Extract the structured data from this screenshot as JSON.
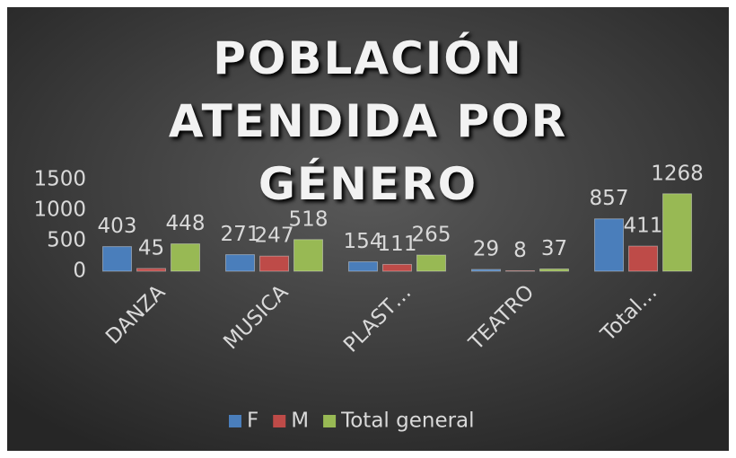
{
  "chart_data": {
    "type": "bar",
    "title": "POBLACIÓN ATENDIDA POR GÉNERO",
    "categories": [
      "DANZA",
      "MUSICA",
      "PLAST…",
      "TEATRO",
      "Total…"
    ],
    "series": [
      {
        "name": "F",
        "color": "#4a7ebb",
        "values": [
          403,
          271,
          154,
          29,
          857
        ]
      },
      {
        "name": "M",
        "color": "#be4b48",
        "values": [
          45,
          247,
          111,
          8,
          411
        ]
      },
      {
        "name": "Total general",
        "color": "#98b954",
        "values": [
          448,
          518,
          265,
          37,
          1268
        ]
      }
    ],
    "ylim": [
      0,
      1500
    ],
    "yticks": [
      0,
      500,
      1000,
      1500
    ],
    "grid": false,
    "legend": "bottom"
  }
}
